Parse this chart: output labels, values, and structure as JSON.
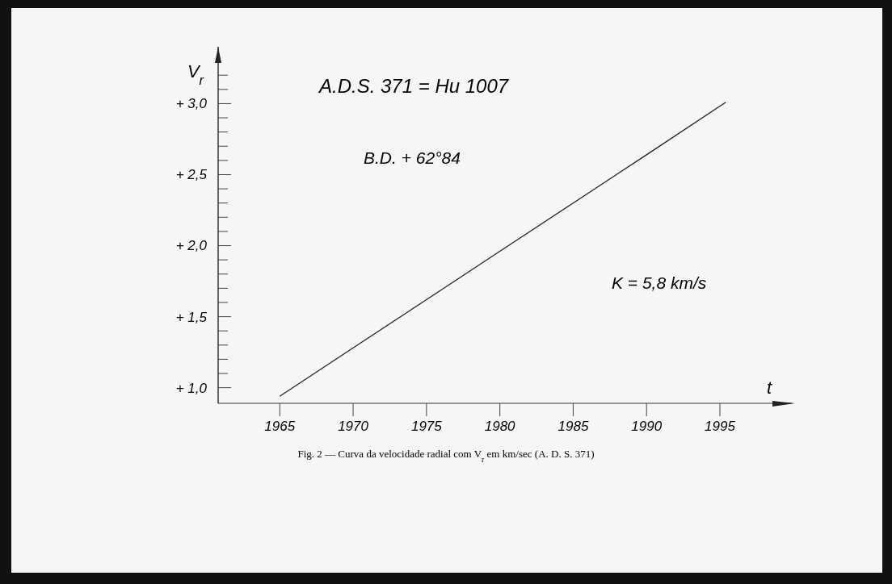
{
  "chart_data": {
    "type": "line",
    "xlabel": "t",
    "ylabel": "V$_{r}$",
    "x": [
      1965,
      1970,
      1975,
      1980,
      1985,
      1990,
      1995.4
    ],
    "values": [
      0.94,
      1.28,
      1.62,
      1.96,
      2.3,
      2.64,
      3.01
    ],
    "color": "#222222",
    "marker": "none",
    "line_style": "solid",
    "grid": false,
    "xlim": [
      1960.8,
      1999.9
    ],
    "ylim": [
      0.89,
      3.4
    ],
    "xticks": [
      1965,
      1970,
      1975,
      1980,
      1985,
      1990,
      1995
    ],
    "yticks": [
      {
        "value": 1,
        "label": "+ 1,0"
      },
      {
        "value": 1.1,
        "label": null
      },
      {
        "value": 1.2,
        "label": null
      },
      {
        "value": 1.3,
        "label": null
      },
      {
        "value": 1.4,
        "label": null
      },
      {
        "value": 1.5,
        "label": "+ 1,5"
      },
      {
        "value": 1.6,
        "label": null
      },
      {
        "value": 1.7,
        "label": null
      },
      {
        "value": 1.8,
        "label": null
      },
      {
        "value": 1.9,
        "label": null
      },
      {
        "value": 2,
        "label": "+ 2,0"
      },
      {
        "value": 2.1,
        "label": null
      },
      {
        "value": 2.2,
        "label": null
      },
      {
        "value": 2.3,
        "label": null
      },
      {
        "value": 2.4,
        "label": null
      },
      {
        "value": 2.5,
        "label": "+ 2,5"
      },
      {
        "value": 2.6,
        "label": null
      },
      {
        "value": 2.7,
        "label": null
      },
      {
        "value": 2.8,
        "label": null
      },
      {
        "value": 2.9,
        "label": null
      },
      {
        "value": 3,
        "label": "+ 3,0"
      },
      {
        "value": 3.1,
        "label": null
      },
      {
        "value": 3.2,
        "label": null
      }
    ],
    "annotations": [
      "A.D.S. 371 = Hu 1007",
      "B.D. + 62°84",
      "K = 5,8 km/s",
      "Fig. 2 — Curva da velocidade radial com V$_{r}$ em km/sec (A. D. S. 371)"
    ]
  }
}
